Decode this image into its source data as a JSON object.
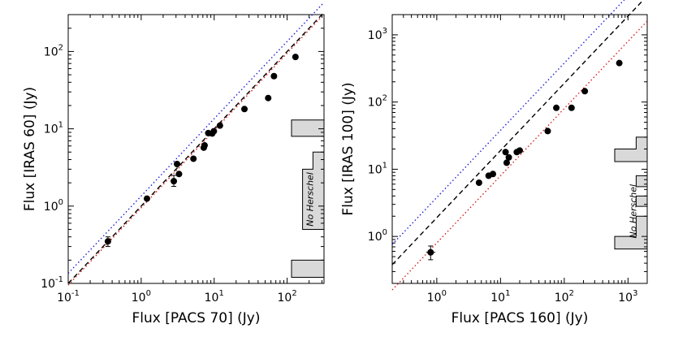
{
  "colors": {
    "blue_line": "#1f1fd6",
    "black_line": "#000000",
    "red_line": "#d62020",
    "points": "#000000",
    "histogram_fill": "#d9d9d9",
    "frame": "#000000"
  },
  "chart_data": [
    {
      "type": "scatter",
      "xscale": "log",
      "yscale": "log",
      "xlabel": "Flux [PACS 70] (Jy)",
      "ylabel": "Flux [IRAS 60] (Jy)",
      "xlim": [
        0.1,
        320
      ],
      "ylim": [
        0.1,
        300
      ],
      "xticks": [
        {
          "value": 0.1,
          "label_base": "10",
          "label_exp": "-1"
        },
        {
          "value": 1,
          "label_base": "10",
          "label_exp": "0"
        },
        {
          "value": 10,
          "label_base": "10",
          "label_exp": "1"
        },
        {
          "value": 100,
          "label_base": "10",
          "label_exp": "2"
        }
      ],
      "yticks": [
        {
          "value": 0.1,
          "label_base": "10",
          "label_exp": "-1"
        },
        {
          "value": 1,
          "label_base": "10",
          "label_exp": "0"
        },
        {
          "value": 10,
          "label_base": "10",
          "label_exp": "1"
        },
        {
          "value": 100,
          "label_base": "10",
          "label_exp": "2"
        }
      ],
      "lines": [
        {
          "name": "blue-dotted",
          "style": "dotted",
          "color": "blue",
          "factor": 1.35
        },
        {
          "name": "black-dashed",
          "style": "dashed",
          "color": "black",
          "factor": 1.0
        },
        {
          "name": "red-dotted",
          "style": "dotted",
          "color": "red",
          "factor": 0.95
        }
      ],
      "points": [
        {
          "x": 0.35,
          "y": 0.35,
          "yerr": [
            0.3,
            0.4
          ]
        },
        {
          "x": 1.2,
          "y": 1.25
        },
        {
          "x": 2.8,
          "y": 2.1,
          "yerr": [
            1.8,
            2.5
          ]
        },
        {
          "x": 3.1,
          "y": 3.5
        },
        {
          "x": 3.3,
          "y": 2.6
        },
        {
          "x": 5.2,
          "y": 4.1
        },
        {
          "x": 7.2,
          "y": 5.7
        },
        {
          "x": 7.4,
          "y": 6.1
        },
        {
          "x": 8.3,
          "y": 8.8
        },
        {
          "x": 9.4,
          "y": 8.7
        },
        {
          "x": 9.9,
          "y": 9.3
        },
        {
          "x": 12,
          "y": 11
        },
        {
          "x": 26,
          "y": 18
        },
        {
          "x": 55,
          "y": 25
        },
        {
          "x": 66,
          "y": 48
        },
        {
          "x": 130,
          "y": 85
        }
      ],
      "histogram": {
        "annotation": "No Herschel",
        "base_x": 320,
        "bins": [
          {
            "ylo": 0.12,
            "yhi": 0.2,
            "value": 0.5
          },
          {
            "ylo": 0.2,
            "yhi": 0.5,
            "value": 0.0
          },
          {
            "ylo": 0.5,
            "yhi": 3.0,
            "value": 0.33
          },
          {
            "ylo": 3.0,
            "yhi": 5.0,
            "value": 0.17
          },
          {
            "ylo": 5.0,
            "yhi": 8.0,
            "value": 0.0
          },
          {
            "ylo": 8.0,
            "yhi": 13.0,
            "value": 0.5
          }
        ]
      }
    },
    {
      "type": "scatter",
      "xscale": "log",
      "yscale": "log",
      "xlabel": "Flux [PACS 160] (Jy)",
      "ylabel": "Flux [IRAS 100] (Jy)",
      "xlim": [
        0.2,
        2000
      ],
      "ylim": [
        0.2,
        2000
      ],
      "xticks": [
        {
          "value": 1,
          "label_base": "10",
          "label_exp": "0"
        },
        {
          "value": 10,
          "label_base": "10",
          "label_exp": "1"
        },
        {
          "value": 100,
          "label_base": "10",
          "label_exp": "2"
        },
        {
          "value": 1000,
          "label_base": "10",
          "label_exp": "3"
        }
      ],
      "yticks": [
        {
          "value": 1,
          "label_base": "10",
          "label_exp": "0"
        },
        {
          "value": 10,
          "label_base": "10",
          "label_exp": "1"
        },
        {
          "value": 100,
          "label_base": "10",
          "label_exp": "2"
        },
        {
          "value": 1000,
          "label_base": "10",
          "label_exp": "3"
        }
      ],
      "lines": [
        {
          "name": "blue-dotted",
          "style": "dotted",
          "color": "blue",
          "factor": 3.8
        },
        {
          "name": "black-dashed",
          "style": "dashed",
          "color": "black",
          "factor": 1.9
        },
        {
          "name": "red-dotted",
          "style": "dotted",
          "color": "red",
          "factor": 0.8
        }
      ],
      "points": [
        {
          "x": 0.8,
          "y": 0.58,
          "yerr": [
            0.45,
            0.72
          ],
          "xerr": [
            0.68,
            0.95
          ]
        },
        {
          "x": 4.6,
          "y": 6.3
        },
        {
          "x": 6.5,
          "y": 8.0
        },
        {
          "x": 7.6,
          "y": 8.5
        },
        {
          "x": 12,
          "y": 18
        },
        {
          "x": 12.5,
          "y": 12.5
        },
        {
          "x": 13.5,
          "y": 15
        },
        {
          "x": 18,
          "y": 18
        },
        {
          "x": 20,
          "y": 19
        },
        {
          "x": 55,
          "y": 37
        },
        {
          "x": 75,
          "y": 82
        },
        {
          "x": 130,
          "y": 82
        },
        {
          "x": 210,
          "y": 145
        },
        {
          "x": 730,
          "y": 380
        }
      ],
      "histogram": {
        "annotation": "No Herschel",
        "base_x": 2000,
        "bins": [
          {
            "ylo": 0.65,
            "yhi": 1.0,
            "value": 0.5
          },
          {
            "ylo": 1.0,
            "yhi": 2.0,
            "value": 0.17
          },
          {
            "ylo": 2.0,
            "yhi": 2.8,
            "value": 0.0
          },
          {
            "ylo": 2.8,
            "yhi": 4.0,
            "value": 0.17
          },
          {
            "ylo": 4.0,
            "yhi": 5.5,
            "value": 0.0
          },
          {
            "ylo": 5.5,
            "yhi": 8.0,
            "value": 0.17
          },
          {
            "ylo": 8.0,
            "yhi": 13.0,
            "value": 0.0
          },
          {
            "ylo": 13.0,
            "yhi": 20.0,
            "value": 0.5
          },
          {
            "ylo": 20.0,
            "yhi": 30.0,
            "value": 0.17
          }
        ]
      }
    }
  ]
}
